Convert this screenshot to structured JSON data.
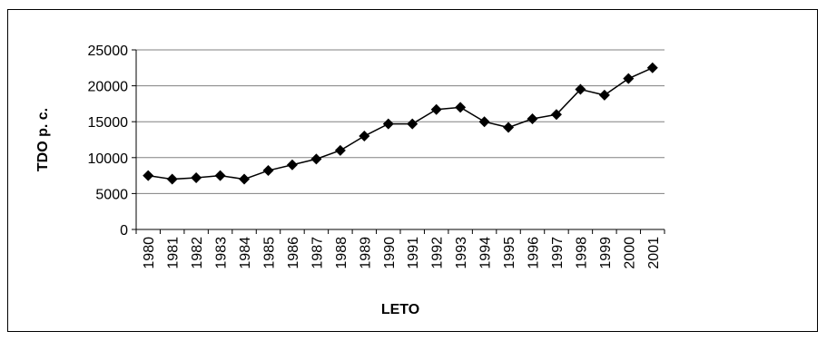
{
  "chart_data": {
    "type": "line",
    "title": "",
    "xlabel": "LETO",
    "ylabel": "TDO p. c.",
    "x": [
      "1980",
      "1981",
      "1982",
      "1983",
      "1984",
      "1985",
      "1986",
      "1987",
      "1988",
      "1989",
      "1990",
      "1991",
      "1992",
      "1993",
      "1994",
      "1995",
      "1996",
      "1997",
      "1998",
      "1999",
      "2000",
      "2001"
    ],
    "series": [
      {
        "values": [
          7500,
          7000,
          7200,
          7500,
          7000,
          8200,
          9000,
          9800,
          11000,
          13000,
          14700,
          14700,
          16700,
          17000,
          15000,
          14200,
          15400,
          16000,
          19500,
          18700,
          21000,
          22500
        ]
      }
    ],
    "yticks": [
      "0",
      "5000",
      "10000",
      "15000",
      "20000",
      "25000"
    ],
    "ylim": [
      0,
      25000
    ],
    "grid": "horizontal",
    "legend": "none",
    "colors": {
      "line": "#000000",
      "grid": "#808080",
      "marker": "#000000"
    }
  }
}
